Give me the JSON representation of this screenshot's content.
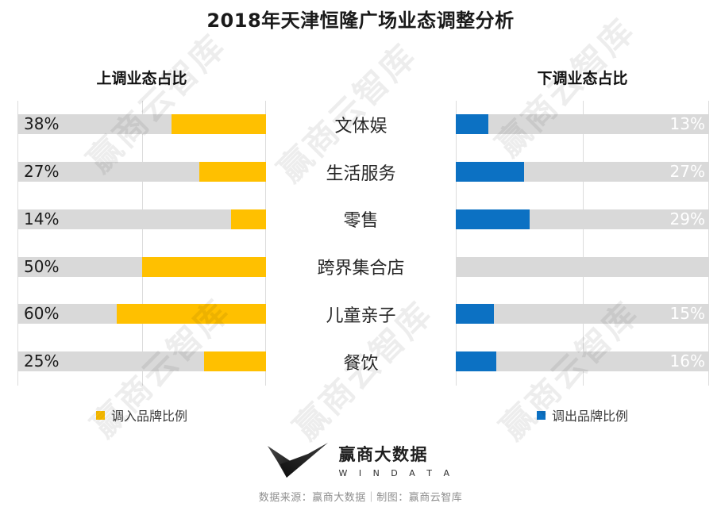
{
  "title": "2018年天津恒隆广场业态调整分析",
  "left_chart": {
    "header": "上调业态占比",
    "legend": "调入品牌比例",
    "bar_color": "#FFC000"
  },
  "right_chart": {
    "header": "下调业态占比",
    "legend": "调出品牌比例",
    "bar_color": "#0C71C3"
  },
  "chart_data": {
    "type": "bar",
    "orientation": "horizontal-tornado",
    "categories": [
      "文体娱",
      "生活服务",
      "零售",
      "跨界集合店",
      "儿童亲子",
      "餐饮"
    ],
    "series": [
      {
        "name": "调入品牌比例",
        "side": "left",
        "color": "#FFC000",
        "values": [
          38,
          27,
          14,
          50,
          60,
          25
        ]
      },
      {
        "name": "调出品牌比例",
        "side": "right",
        "color": "#0C71C3",
        "values": [
          13,
          27,
          29,
          null,
          15,
          16
        ]
      }
    ],
    "value_suffix": "%",
    "xlim": [
      0,
      100
    ],
    "track_color": "#D9D9D9",
    "grid": "vertical-lines-at-0-50-100",
    "legend_position": "bottom"
  },
  "watermark": {
    "text": "赢商云智库"
  },
  "footer": {
    "logo": "win-data-butterfly-logo",
    "brand_cn": "赢商大数据",
    "brand_en": "W I N  D A T A",
    "source_line": "数据来源：赢商大数据｜制图：赢商云智库"
  }
}
